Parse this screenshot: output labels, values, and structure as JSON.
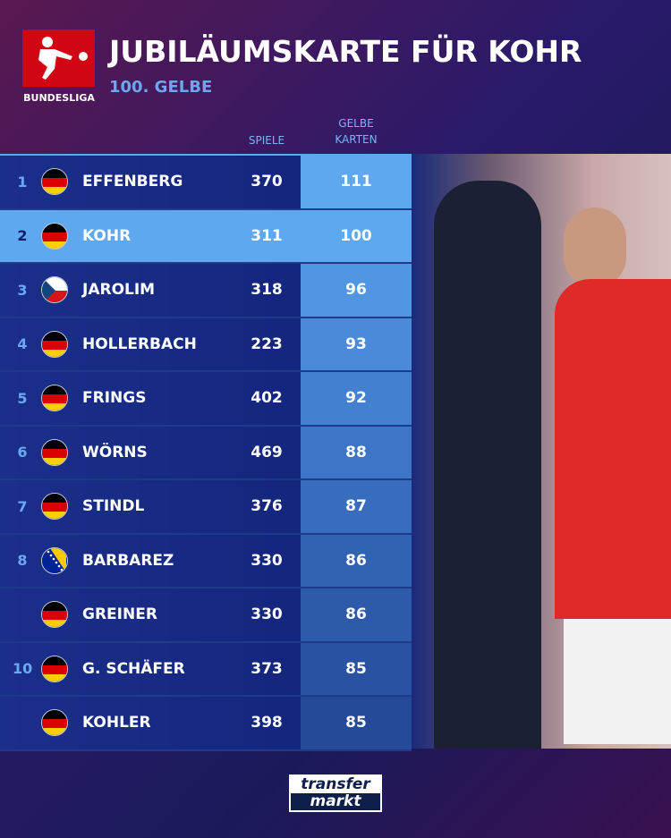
{
  "header": {
    "logo_text": "BUNDESLIGA",
    "title": "JUBILÄUMSKARTE FÜR KOHR",
    "subtitle": "100. GELBE"
  },
  "columns": {
    "spiele": "SPIELE",
    "gelbe_line1": "GELBE",
    "gelbe_line2": "KARTEN"
  },
  "rows": [
    {
      "rank": "1",
      "flag": "germany",
      "name": "EFFENBERG",
      "spiele": "370",
      "gelbe": "111",
      "gk_color": "#5fa8f0"
    },
    {
      "rank": "2",
      "flag": "germany",
      "name": "KOHR",
      "spiele": "311",
      "gelbe": "100",
      "highlight": true
    },
    {
      "rank": "3",
      "flag": "czech-republic",
      "name": "JAROLIM",
      "spiele": "318",
      "gelbe": "96",
      "gk_color": "#5196e0"
    },
    {
      "rank": "4",
      "flag": "germany",
      "name": "HOLLERBACH",
      "spiele": "223",
      "gelbe": "93",
      "gk_color": "#4a8ad8"
    },
    {
      "rank": "5",
      "flag": "germany",
      "name": "FRINGS",
      "spiele": "402",
      "gelbe": "92",
      "gk_color": "#4380d0"
    },
    {
      "rank": "6",
      "flag": "germany",
      "name": "WÖRNS",
      "spiele": "469",
      "gelbe": "88",
      "gk_color": "#3d76c6"
    },
    {
      "rank": "7",
      "flag": "germany",
      "name": "STINDL",
      "spiele": "376",
      "gelbe": "87",
      "gk_color": "#386cbc"
    },
    {
      "rank": "8",
      "flag": "bosnia-herzegovina",
      "name": "BARBAREZ",
      "spiele": "330",
      "gelbe": "86",
      "gk_color": "#3262b2"
    },
    {
      "rank": "",
      "flag": "germany",
      "name": "GREINER",
      "spiele": "330",
      "gelbe": "86",
      "gk_color": "#2e5aaa"
    },
    {
      "rank": "10",
      "flag": "germany",
      "name": "G. SCHÄFER",
      "spiele": "373",
      "gelbe": "85",
      "gk_color": "#2a52a2"
    },
    {
      "rank": "",
      "flag": "germany",
      "name": "KOHLER",
      "spiele": "398",
      "gelbe": "85",
      "gk_color": "#264a9a"
    }
  ],
  "footer": {
    "brand_line1": "transfer",
    "brand_line2": "markt"
  }
}
